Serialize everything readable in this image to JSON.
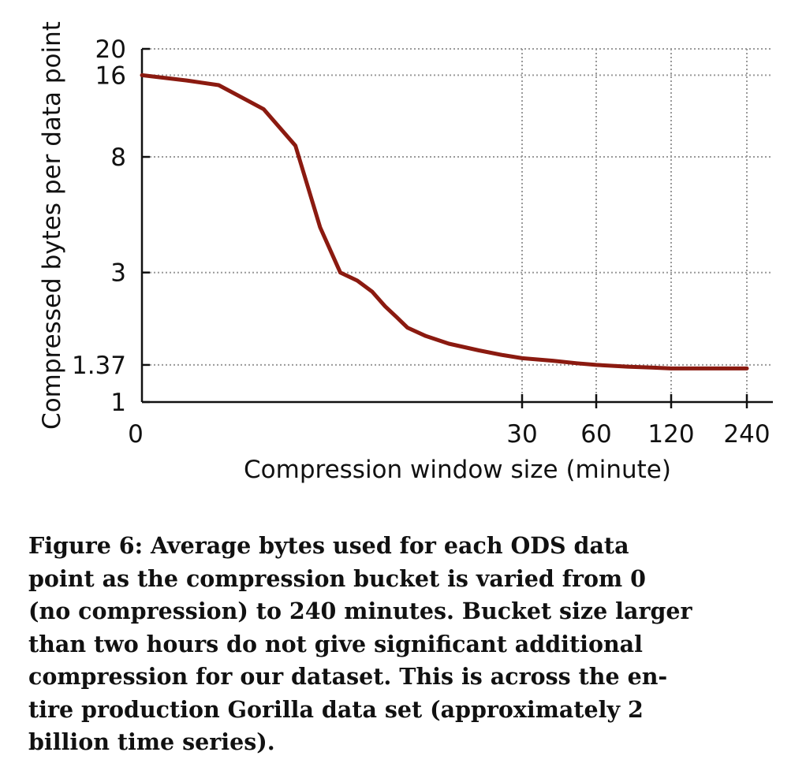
{
  "chart_data": {
    "type": "line",
    "title": "",
    "xlabel": "Compression window size (minute)",
    "ylabel": "Compressed bytes per data point",
    "x_scale": "log-like (0, 30, 60, 120, 240)",
    "x_ticks": [
      0,
      30,
      60,
      120,
      240
    ],
    "x_tick_labels": [
      "0",
      "30",
      "60",
      "120",
      "240"
    ],
    "y_scale": "log",
    "y_ticks": [
      1,
      1.37,
      3,
      8,
      16,
      20
    ],
    "y_tick_labels": [
      "1",
      "1.37",
      "3",
      "8",
      "16",
      "20"
    ],
    "ylim": [
      1,
      20
    ],
    "grid": true,
    "series": [
      {
        "name": "Compressed bytes per data point",
        "color": "#8b1a10",
        "x": [
          0,
          0.5,
          1,
          2,
          3,
          4,
          5,
          6,
          7,
          8,
          9,
          10,
          12,
          15,
          20,
          25,
          30,
          40,
          50,
          60,
          80,
          100,
          120,
          150,
          180,
          210,
          240
        ],
        "y": [
          16,
          15.3,
          14.7,
          12,
          8.8,
          4.4,
          3.0,
          2.8,
          2.55,
          2.25,
          2.05,
          1.88,
          1.75,
          1.64,
          1.55,
          1.49,
          1.45,
          1.42,
          1.39,
          1.37,
          1.35,
          1.34,
          1.33,
          1.33,
          1.33,
          1.33,
          1.33
        ]
      }
    ]
  },
  "caption": {
    "line1": "Figure 6: Average bytes used for each ODS data",
    "line2": "point as the compression bucket is varied from 0",
    "line3": "(no compression) to 240 minutes. Bucket size larger",
    "line4": "than two hours do not give significant additional",
    "line5": "compression for our dataset. This is across the en-",
    "line6": "tire production Gorilla data set (approximately 2",
    "line7": "billion time series)."
  }
}
